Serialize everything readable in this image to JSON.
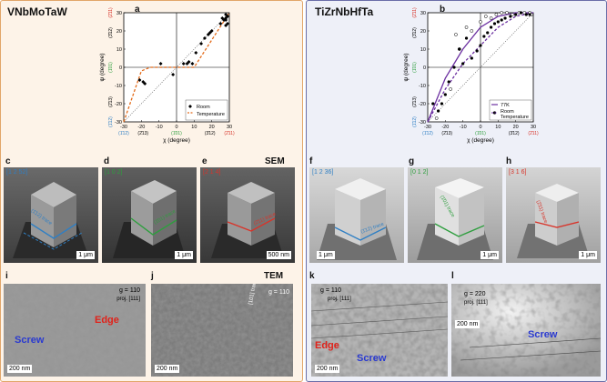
{
  "left_panel": {
    "title": "VNbMoTaW"
  },
  "right_panel": {
    "title": "TiZrNbHfTa"
  },
  "labels": {
    "a": "a",
    "b": "b",
    "c": "c",
    "d": "d",
    "e": "e",
    "f": "f",
    "g": "g",
    "h": "h",
    "i": "i",
    "j": "j",
    "k": "k",
    "l": "l"
  },
  "section_labels": {
    "sem": "SEM",
    "tem": "TEM"
  },
  "colors": {
    "blue": "#2f7fc4",
    "green": "#2e9e3e",
    "red": "#d8342a",
    "orange": "#e36b1a",
    "purple": "#6b2fa0"
  },
  "chart_data": [
    {
      "type": "scatter",
      "panel": "a",
      "xlabel": "χ (degree)",
      "ylabel": "ψ (degree)",
      "xlim": [
        -30,
        30
      ],
      "ylim": [
        -30,
        30
      ],
      "xticks": [
        -30,
        -20,
        -10,
        0,
        10,
        20,
        30
      ],
      "yticks": [
        -30,
        -20,
        -10,
        0,
        10,
        20,
        30
      ],
      "x_annotations": [
        {
          "text": "(1̄12)",
          "x": -30,
          "color": "#2f7fc4"
        },
        {
          "text": "(2̄13)",
          "x": -19,
          "color": "#000000"
        },
        {
          "text": "(1̄01)",
          "x": 0,
          "color": "#2e9e3e"
        },
        {
          "text": "(3̄12)",
          "x": 19,
          "color": "#000000"
        },
        {
          "text": "(2̄11)",
          "x": 30,
          "color": "#d8342a"
        }
      ],
      "y_annotations": [
        {
          "text": "(2̄11)",
          "y": 30,
          "color": "#d8342a"
        },
        {
          "text": "(3̄12)",
          "y": 19,
          "color": "#000000"
        },
        {
          "text": "(1̄01)",
          "y": 0,
          "color": "#2e9e3e"
        },
        {
          "text": "(2̄13)",
          "y": -19,
          "color": "#000000"
        },
        {
          "text": "(1̄12)",
          "y": -30,
          "color": "#2f7fc4"
        }
      ],
      "series": [
        {
          "name": "Room Temperature",
          "marker": "filled-diamond",
          "color": "#000000",
          "points": [
            [
              -19,
              -8
            ],
            [
              -21,
              -7
            ],
            [
              -18,
              -9
            ],
            [
              -9,
              2
            ],
            [
              -2,
              -4
            ],
            [
              4,
              2
            ],
            [
              6,
              2
            ],
            [
              7,
              3
            ],
            [
              9,
              2
            ],
            [
              11,
              8
            ],
            [
              14,
              13
            ],
            [
              16,
              16
            ],
            [
              18,
              18
            ],
            [
              19,
              19
            ],
            [
              20,
              20
            ],
            [
              25,
              24
            ],
            [
              26,
              27
            ],
            [
              27,
              26
            ],
            [
              28,
              29
            ],
            [
              28,
              27
            ],
            [
              29,
              28
            ],
            [
              28,
              26
            ],
            [
              28,
              23
            ],
            [
              29,
              24
            ]
          ]
        }
      ],
      "fit_line": {
        "color": "#e36b1a",
        "style": "dashed",
        "points": [
          [
            -30,
            -30
          ],
          [
            -20,
            -2
          ],
          [
            -15,
            0
          ],
          [
            10,
            0
          ],
          [
            30,
            30
          ]
        ]
      },
      "reference_line": {
        "style": "dotted",
        "points": [
          [
            -30,
            -30
          ],
          [
            30,
            30
          ]
        ]
      },
      "legend": {
        "placement": "bottom-right",
        "entries": [
          "Room",
          "Temperature"
        ]
      }
    },
    {
      "type": "scatter",
      "panel": "b",
      "xlabel": "χ (degree)",
      "ylabel": "ψ (degree)",
      "xlim": [
        -30,
        30
      ],
      "ylim": [
        -30,
        30
      ],
      "xticks": [
        -30,
        -20,
        -10,
        0,
        10,
        20,
        30
      ],
      "yticks": [
        -30,
        -20,
        -10,
        0,
        10,
        20,
        30
      ],
      "x_annotations": [
        {
          "text": "(1̄12)",
          "x": -30,
          "color": "#2f7fc4"
        },
        {
          "text": "(2̄13)",
          "x": -19,
          "color": "#000000"
        },
        {
          "text": "(1̄01)",
          "x": 0,
          "color": "#2e9e3e"
        },
        {
          "text": "(3̄12)",
          "x": 19,
          "color": "#000000"
        },
        {
          "text": "(2̄11)",
          "x": 30,
          "color": "#d8342a"
        }
      ],
      "y_annotations": [
        {
          "text": "(2̄11)",
          "y": 30,
          "color": "#d8342a"
        },
        {
          "text": "(3̄12)",
          "y": 19,
          "color": "#000000"
        },
        {
          "text": "(1̄01)",
          "y": 0,
          "color": "#2e9e3e"
        },
        {
          "text": "(2̄13)",
          "y": -19,
          "color": "#000000"
        },
        {
          "text": "(1̄12)",
          "y": -30,
          "color": "#2f7fc4"
        }
      ],
      "series": [
        {
          "name": "77K",
          "marker": "open-circle",
          "color": "#000000",
          "points": [
            [
              -25,
              -28
            ],
            [
              -17,
              -12
            ],
            [
              -12,
              10
            ],
            [
              -5,
              20
            ],
            [
              0,
              25
            ],
            [
              3,
              28
            ],
            [
              6,
              27
            ],
            [
              9,
              29
            ],
            [
              12,
              30
            ],
            [
              15,
              30
            ],
            [
              18,
              29
            ],
            [
              22,
              30
            ],
            [
              25,
              30
            ],
            [
              28,
              30
            ],
            [
              29,
              29
            ],
            [
              -14,
              18
            ],
            [
              -8,
              22
            ]
          ]
        },
        {
          "name": "Room Temperature",
          "marker": "filled-circle",
          "color": "#000000",
          "points": [
            [
              -27,
              -20
            ],
            [
              -24,
              -24
            ],
            [
              -22,
              -20
            ],
            [
              -20,
              -15
            ],
            [
              -18,
              -8
            ],
            [
              -15,
              0
            ],
            [
              -12,
              10
            ],
            [
              -10,
              2
            ],
            [
              -8,
              16
            ],
            [
              -5,
              5
            ],
            [
              -2,
              9
            ],
            [
              0,
              12
            ],
            [
              2,
              17
            ],
            [
              4,
              19
            ],
            [
              6,
              22
            ],
            [
              8,
              24
            ],
            [
              10,
              25
            ],
            [
              12,
              26
            ],
            [
              14,
              27
            ],
            [
              17,
              28
            ],
            [
              20,
              29
            ],
            [
              23,
              30
            ],
            [
              26,
              29
            ],
            [
              28,
              29
            ]
          ]
        }
      ],
      "fit_lines": [
        {
          "series": "77K",
          "color": "#6b2fa0",
          "style": "solid",
          "points": [
            [
              -30,
              -30
            ],
            [
              -20,
              -6
            ],
            [
              -10,
              10
            ],
            [
              0,
              22
            ],
            [
              10,
              28
            ],
            [
              20,
              30
            ],
            [
              30,
              30
            ]
          ]
        },
        {
          "series": "Room Temperature",
          "color": "#6b2fa0",
          "style": "dashed",
          "points": [
            [
              -30,
              -30
            ],
            [
              -20,
              -12
            ],
            [
              -10,
              2
            ],
            [
              0,
              12
            ],
            [
              10,
              22
            ],
            [
              20,
              28
            ],
            [
              30,
              30
            ]
          ]
        }
      ],
      "reference_line": {
        "style": "dotted",
        "points": [
          [
            -30,
            -30
          ],
          [
            30,
            30
          ]
        ]
      },
      "legend": {
        "placement": "bottom-right",
        "entries": [
          "77K",
          "Room",
          "Temperature"
        ]
      }
    }
  ],
  "sem_images": {
    "c": {
      "direction": "[1 2 52]",
      "direction_color": "#2f7fc4",
      "trace": "(1̄12) trace",
      "trace_color": "#2f7fc4",
      "scalebar": "1 μm"
    },
    "d": {
      "direction": "[1 0 2]",
      "direction_color": "#2e9e3e",
      "trace": "(1̄01) trace",
      "trace_color": "#2e9e3e",
      "scalebar": "1 μm"
    },
    "e": {
      "direction": "[2 1 4]",
      "direction_color": "#d8342a",
      "trace": "(2̄11) trace",
      "trace_color": "#d8342a",
      "scalebar": "500 nm"
    },
    "f": {
      "direction": "[1 2 36]",
      "direction_color": "#2f7fc4",
      "trace": "(1̄12) trace",
      "trace_color": "#2f7fc4",
      "scalebar": "1 μm"
    },
    "g": {
      "direction": "[0 1 2]",
      "direction_color": "#2e9e3e",
      "trace": "(1̄01) trace",
      "trace_color": "#2e9e3e",
      "scalebar": "1 μm"
    },
    "h": {
      "direction": "[3 1 6]",
      "direction_color": "#d8342a",
      "trace": "(2̄11) trace",
      "trace_color": "#d8342a",
      "scalebar": "1 μm"
    }
  },
  "tem_images": {
    "i": {
      "g": "g = 110",
      "proj": "proj. [111]",
      "screw": "Screw",
      "edge": "Edge",
      "scalebar": "200 nm"
    },
    "j": {
      "g": "g = 110",
      "proj": "[101] trace",
      "scalebar": "200 nm"
    },
    "k": {
      "g": "g = 110",
      "proj": "proj. [111]",
      "screw": "Screw",
      "edge": "Edge",
      "scalebar": "200 nm"
    },
    "l": {
      "g": "g = 220",
      "proj": "proj. [111]",
      "screw": "Screw",
      "scalebar": "200 nm"
    }
  }
}
